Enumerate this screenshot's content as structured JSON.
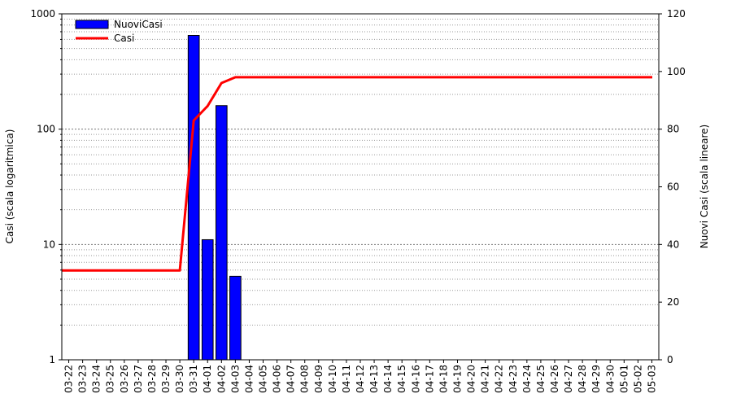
{
  "chart_data": {
    "type": "bar+line",
    "categories": [
      "03-22",
      "03-23",
      "03-24",
      "03-25",
      "03-26",
      "03-27",
      "03-28",
      "03-29",
      "03-30",
      "03-31",
      "04-01",
      "04-02",
      "04-03",
      "04-04",
      "04-05",
      "04-06",
      "04-07",
      "04-08",
      "04-09",
      "04-10",
      "04-11",
      "04-12",
      "04-13",
      "04-14",
      "04-15",
      "04-16",
      "04-17",
      "04-18",
      "04-19",
      "04-20",
      "04-21",
      "04-22",
      "04-23",
      "04-24",
      "04-25",
      "04-26",
      "04-27",
      "04-28",
      "04-29",
      "04-30",
      "05-01",
      "05-02",
      "05-03"
    ],
    "left_axis": {
      "label": "Casi (scala logaritmica)",
      "scale": "log",
      "range": [
        1,
        1000
      ],
      "ticks": [
        "1",
        "10",
        "100",
        "1000"
      ]
    },
    "right_axis": {
      "label": "Nuovi Casi (scala lineare)",
      "scale": "linear",
      "range": [
        0,
        120
      ],
      "ticks": [
        "0",
        "20",
        "40",
        "60",
        "80",
        "100",
        "120"
      ]
    },
    "series": [
      {
        "name": "NuoviCasi",
        "kind": "bar",
        "axis": "left",
        "color": "#0000ff",
        "values": [
          null,
          null,
          null,
          null,
          null,
          null,
          null,
          null,
          null,
          650,
          11,
          160,
          5.3,
          null,
          null,
          null,
          null,
          null,
          null,
          null,
          null,
          null,
          null,
          null,
          null,
          null,
          null,
          null,
          null,
          null,
          null,
          null,
          null,
          null,
          null,
          null,
          null,
          null,
          null,
          null,
          null,
          null,
          null
        ]
      },
      {
        "name": "Casi",
        "kind": "line",
        "axis": "right",
        "color": "#ff0000",
        "values": [
          31,
          31,
          31,
          31,
          31,
          31,
          31,
          31,
          31,
          83,
          88,
          96,
          98,
          98,
          98,
          98,
          98,
          98,
          98,
          98,
          98,
          98,
          98,
          98,
          98,
          98,
          98,
          98,
          98,
          98,
          98,
          98,
          98,
          98,
          98,
          98,
          98,
          98,
          98,
          98,
          98,
          98,
          98
        ]
      }
    ],
    "grid": true,
    "legend": "top-left"
  }
}
